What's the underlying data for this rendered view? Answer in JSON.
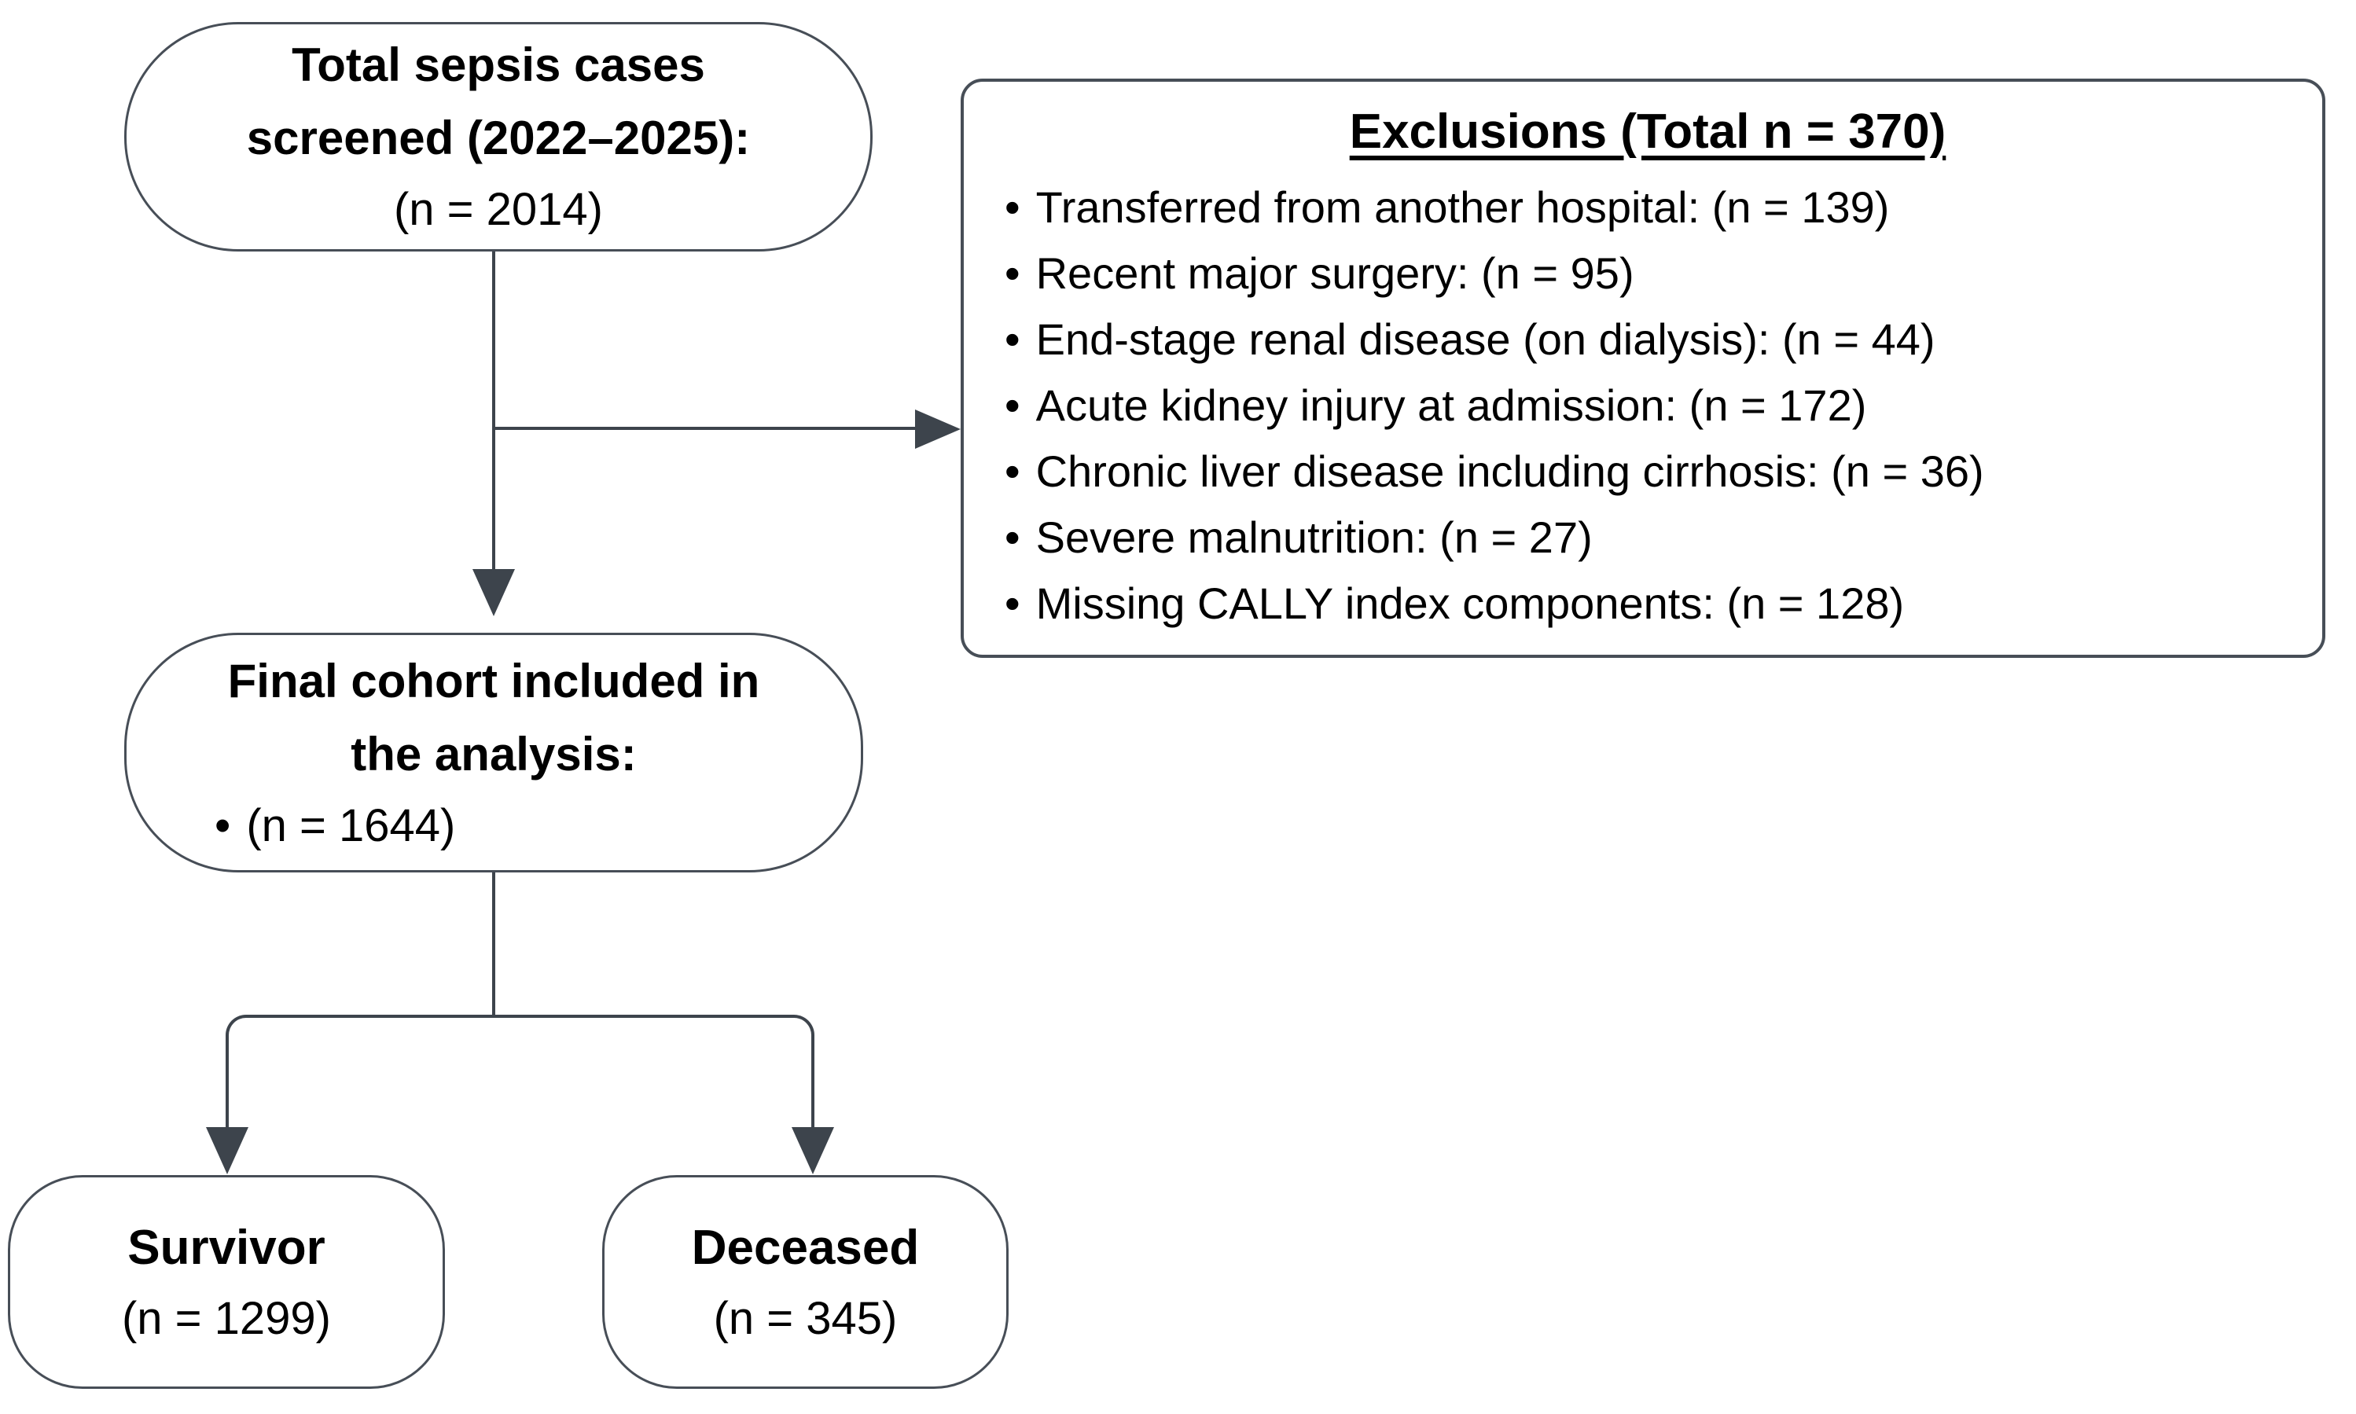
{
  "glyphs": {
    "bullet": "•"
  },
  "colors": {
    "background": "#ffffff",
    "box_fill": "#ffffff",
    "box_border": "#474e57",
    "connector_line": "#3d444c",
    "text": "#000000"
  },
  "nodes": {
    "total": {
      "line1": "Total sepsis cases",
      "line2": "screened (2022–2025):",
      "line3": "(n = 2014)"
    },
    "exclusions": {
      "title": "Exclusions (Total n = 370)",
      "items": [
        "Transferred from another hospital: (n = 139)",
        "Recent major surgery: (n = 95)",
        "End-stage renal disease (on dialysis): (n = 44)",
        "Acute kidney injury at admission: (n = 172)",
        "Chronic liver disease including cirrhosis: (n = 36)",
        "Severe malnutrition: (n = 27)",
        "Missing CALLY index components: (n = 128)"
      ]
    },
    "final": {
      "line1": "Final cohort included in",
      "line2": "the analysis:",
      "bullet_text": "(n = 1644)"
    },
    "survivor": {
      "title": "Survivor",
      "count": "(n = 1299)"
    },
    "deceased": {
      "title": "Deceased",
      "count": "(n = 345)"
    }
  }
}
